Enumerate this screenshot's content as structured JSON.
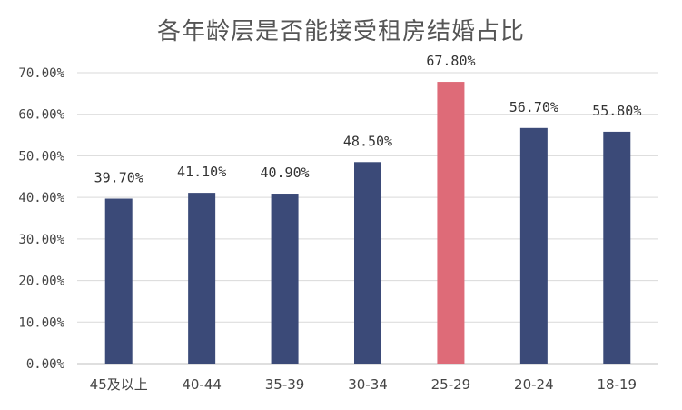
{
  "chart_data": {
    "type": "bar",
    "title": "各年龄层是否能接受租房结婚占比",
    "categories": [
      "45及以上",
      "40-44",
      "35-39",
      "30-34",
      "25-29",
      "20-24",
      "18-19"
    ],
    "values": [
      39.7,
      41.1,
      40.9,
      48.5,
      67.8,
      56.7,
      55.8
    ],
    "value_labels": [
      "39.70%",
      "41.10%",
      "40.90%",
      "48.50%",
      "67.80%",
      "56.70%",
      "55.80%"
    ],
    "y_ticks": [
      0,
      10,
      20,
      30,
      40,
      50,
      60,
      70
    ],
    "y_tick_labels": [
      "0.00%",
      "10.00%",
      "20.00%",
      "30.00%",
      "40.00%",
      "50.00%",
      "60.00%",
      "70.00%"
    ],
    "ylim": [
      0,
      70
    ],
    "xlabel": "",
    "ylabel": "",
    "grid": true,
    "legend": "none",
    "colors": {
      "bar": "#3b4a78",
      "highlight": "#de6b78"
    },
    "highlight_index": 4
  }
}
